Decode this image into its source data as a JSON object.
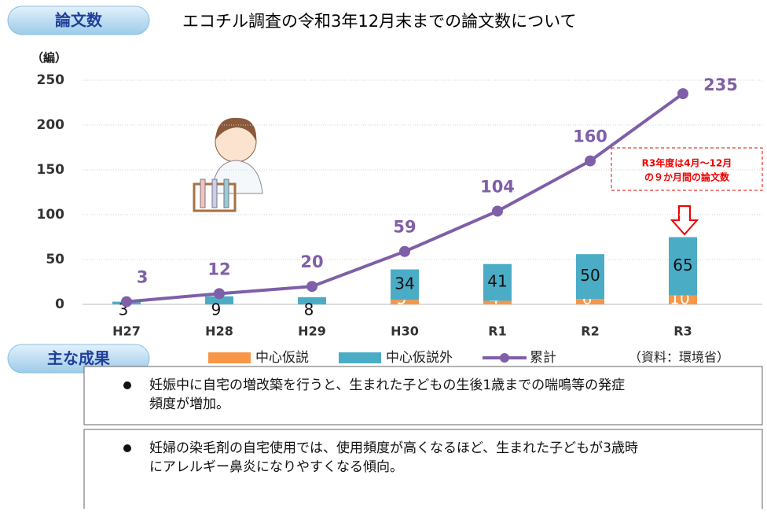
{
  "chart_data": {
    "type": "stacked_bar_line",
    "title": "エコチル調査の令和3年12月末までの論文数について",
    "badge": "論文数",
    "y_label": "（編）",
    "categories": [
      "H27",
      "H28",
      "H29",
      "H30",
      "R1",
      "R2",
      "R3"
    ],
    "series": [
      {
        "name": "中心仮説",
        "color": "#f79646",
        "values": [
          0,
          0,
          0,
          5,
          4,
          6,
          10
        ]
      },
      {
        "name": "中心仮説外",
        "color": "#4bacc6",
        "values": [
          3,
          9,
          8,
          34,
          41,
          50,
          65
        ]
      },
      {
        "name": "累計",
        "color": "#7f5fa8",
        "values": [
          3,
          12,
          20,
          59,
          104,
          160,
          235
        ],
        "kind": "line"
      }
    ],
    "ylim": [
      0,
      250
    ],
    "yticks": [
      0,
      50,
      100,
      150,
      200,
      250
    ],
    "grid": true,
    "annotation": [
      "R3年度は4月～12月",
      "の９か月間の論文数"
    ],
    "source": "（資料：環境省）"
  },
  "results": {
    "badge": "主な成果",
    "items": [
      [
        "妊娠中に自宅の増改築を行うと、生まれた子どもの生後1歳までの喘鳴等の発症",
        "頻度が増加。"
      ],
      [
        "妊婦の染毛剤の自宅使用では、使用頻度が高くなるほど、生まれた子どもが3歳時",
        "にアレルギー鼻炎になりやすくなる傾向。"
      ]
    ]
  }
}
